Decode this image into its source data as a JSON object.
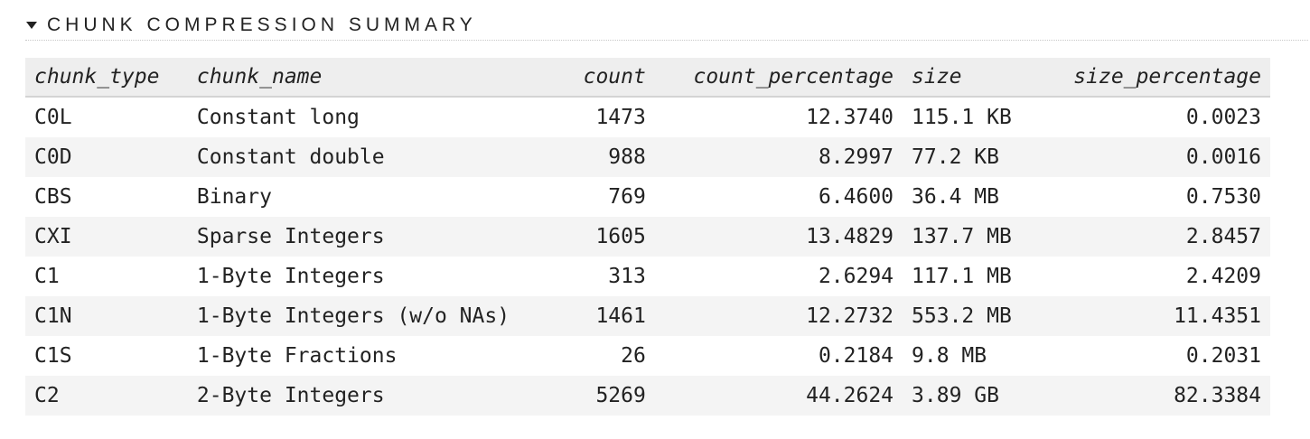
{
  "section": {
    "title": "CHUNK COMPRESSION SUMMARY"
  },
  "table": {
    "columns": [
      "chunk_type",
      "chunk_name",
      "count",
      "count_percentage",
      "size",
      "size_percentage"
    ],
    "rows": [
      [
        "C0L",
        "Constant long",
        "1473",
        "12.3740",
        "115.1 KB",
        "0.0023"
      ],
      [
        "C0D",
        "Constant double",
        "988",
        "8.2997",
        "77.2 KB",
        "0.0016"
      ],
      [
        "CBS",
        "Binary",
        "769",
        "6.4600",
        "36.4 MB",
        "0.7530"
      ],
      [
        "CXI",
        "Sparse Integers",
        "1605",
        "13.4829",
        "137.7 MB",
        "2.8457"
      ],
      [
        "C1",
        "1-Byte Integers",
        "313",
        "2.6294",
        "117.1 MB",
        "2.4209"
      ],
      [
        "C1N",
        "1-Byte Integers (w/o NAs)",
        "1461",
        "12.2732",
        "553.2 MB",
        "11.4351"
      ],
      [
        "C1S",
        "1-Byte Fractions",
        "26",
        "0.2184",
        "9.8 MB",
        "0.2031"
      ],
      [
        "C2",
        "2-Byte Integers",
        "5269",
        "44.2624",
        "3.89 GB",
        "82.3384"
      ]
    ]
  }
}
